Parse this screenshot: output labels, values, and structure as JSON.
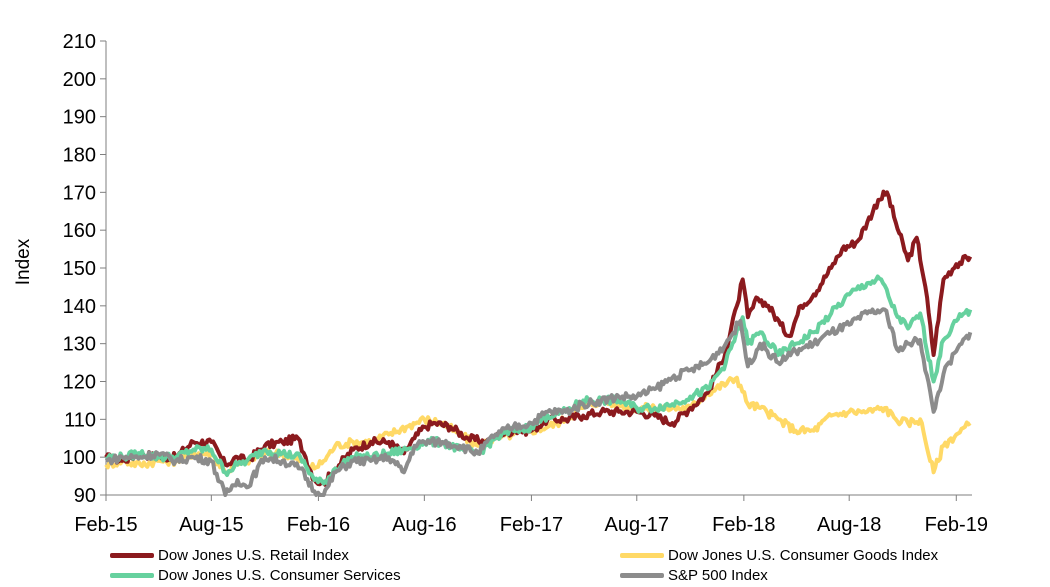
{
  "chart_data": {
    "type": "line",
    "title": "",
    "xlabel": "",
    "ylabel": "Index",
    "ylim": [
      90,
      210
    ],
    "yticks": [
      90,
      100,
      110,
      120,
      130,
      140,
      150,
      160,
      170,
      180,
      190,
      200,
      210
    ],
    "xlim": [
      "2015-02-01",
      "2019-02-28"
    ],
    "xticks": [
      {
        "label": "Feb-15",
        "date": "2015-02-01"
      },
      {
        "label": "Aug-15",
        "date": "2015-08-01"
      },
      {
        "label": "Feb-16",
        "date": "2016-02-01"
      },
      {
        "label": "Aug-16",
        "date": "2016-08-01"
      },
      {
        "label": "Feb-17",
        "date": "2017-02-01"
      },
      {
        "label": "Aug-17",
        "date": "2017-08-01"
      },
      {
        "label": "Feb-18",
        "date": "2018-02-01"
      },
      {
        "label": "Aug-18",
        "date": "2018-08-01"
      },
      {
        "label": "Feb-19",
        "date": "2019-02-01"
      }
    ],
    "grid": false,
    "legend_position": "bottom",
    "series": [
      {
        "name": "Dow Jones U.S. Retail Index",
        "color": "#8B1A1E",
        "points": [
          [
            "2015-02-01",
            100
          ],
          [
            "2015-03-01",
            99
          ],
          [
            "2015-04-01",
            101
          ],
          [
            "2015-05-01",
            100
          ],
          [
            "2015-06-01",
            100
          ],
          [
            "2015-07-01",
            104
          ],
          [
            "2015-08-01",
            104
          ],
          [
            "2015-08-25",
            98
          ],
          [
            "2015-09-15",
            100
          ],
          [
            "2015-10-01",
            99
          ],
          [
            "2015-11-01",
            103
          ],
          [
            "2015-12-01",
            104
          ],
          [
            "2015-12-28",
            105
          ],
          [
            "2016-01-10",
            100
          ],
          [
            "2016-01-25",
            94
          ],
          [
            "2016-02-10",
            93
          ],
          [
            "2016-03-01",
            97
          ],
          [
            "2016-04-01",
            102
          ],
          [
            "2016-05-01",
            104
          ],
          [
            "2016-06-01",
            104
          ],
          [
            "2016-06-27",
            101
          ],
          [
            "2016-07-15",
            105
          ],
          [
            "2016-08-01",
            108
          ],
          [
            "2016-08-20",
            109
          ],
          [
            "2016-09-15",
            108
          ],
          [
            "2016-10-15",
            105
          ],
          [
            "2016-11-15",
            104
          ],
          [
            "2016-12-10",
            106
          ],
          [
            "2017-01-01",
            107
          ],
          [
            "2017-02-01",
            107
          ],
          [
            "2017-03-01",
            110
          ],
          [
            "2017-04-01",
            110
          ],
          [
            "2017-05-01",
            111
          ],
          [
            "2017-06-01",
            112
          ],
          [
            "2017-07-01",
            112
          ],
          [
            "2017-08-01",
            112
          ],
          [
            "2017-09-01",
            111
          ],
          [
            "2017-10-01",
            109
          ],
          [
            "2017-11-01",
            113
          ],
          [
            "2017-12-01",
            117
          ],
          [
            "2018-01-01",
            128
          ],
          [
            "2018-01-20",
            140
          ],
          [
            "2018-01-30",
            147
          ],
          [
            "2018-02-08",
            137
          ],
          [
            "2018-02-25",
            142
          ],
          [
            "2018-03-15",
            140
          ],
          [
            "2018-04-05",
            135
          ],
          [
            "2018-04-20",
            132
          ],
          [
            "2018-05-10",
            140
          ],
          [
            "2018-06-01",
            143
          ],
          [
            "2018-07-01",
            150
          ],
          [
            "2018-07-20",
            155
          ],
          [
            "2018-08-15",
            157
          ],
          [
            "2018-09-01",
            162
          ],
          [
            "2018-09-20",
            168
          ],
          [
            "2018-10-05",
            170
          ],
          [
            "2018-10-20",
            162
          ],
          [
            "2018-11-10",
            152
          ],
          [
            "2018-11-25",
            158
          ],
          [
            "2018-12-10",
            145
          ],
          [
            "2018-12-24",
            127
          ],
          [
            "2019-01-10",
            147
          ],
          [
            "2019-02-01",
            151
          ],
          [
            "2019-02-25",
            153
          ]
        ]
      },
      {
        "name": "Dow Jones U.S. Consumer Goods Index",
        "color": "#FFD966",
        "points": [
          [
            "2015-02-01",
            98
          ],
          [
            "2015-03-01",
            99
          ],
          [
            "2015-04-01",
            98
          ],
          [
            "2015-05-01",
            99
          ],
          [
            "2015-06-01",
            99
          ],
          [
            "2015-07-01",
            101
          ],
          [
            "2015-08-01",
            101
          ],
          [
            "2015-08-25",
            96
          ],
          [
            "2015-09-15",
            98
          ],
          [
            "2015-10-01",
            99
          ],
          [
            "2015-11-01",
            101
          ],
          [
            "2015-12-01",
            101
          ],
          [
            "2016-01-01",
            99
          ],
          [
            "2016-01-25",
            97
          ],
          [
            "2016-02-10",
            99
          ],
          [
            "2016-03-01",
            103
          ],
          [
            "2016-04-01",
            104
          ],
          [
            "2016-05-01",
            104
          ],
          [
            "2016-06-01",
            106
          ],
          [
            "2016-07-01",
            108
          ],
          [
            "2016-08-01",
            110
          ],
          [
            "2016-09-01",
            109
          ],
          [
            "2016-10-01",
            106
          ],
          [
            "2016-11-01",
            103
          ],
          [
            "2016-12-01",
            105
          ],
          [
            "2017-01-01",
            106
          ],
          [
            "2017-02-01",
            107
          ],
          [
            "2017-03-01",
            108
          ],
          [
            "2017-04-01",
            110
          ],
          [
            "2017-05-01",
            113
          ],
          [
            "2017-06-01",
            115
          ],
          [
            "2017-07-01",
            114
          ],
          [
            "2017-08-01",
            113
          ],
          [
            "2017-09-01",
            113
          ],
          [
            "2017-10-01",
            113
          ],
          [
            "2017-11-01",
            113
          ],
          [
            "2017-12-01",
            117
          ],
          [
            "2018-01-20",
            121
          ],
          [
            "2018-02-08",
            114
          ],
          [
            "2018-03-01",
            113
          ],
          [
            "2018-04-01",
            110
          ],
          [
            "2018-05-01",
            107
          ],
          [
            "2018-06-01",
            107
          ],
          [
            "2018-07-01",
            111
          ],
          [
            "2018-08-01",
            112
          ],
          [
            "2018-09-01",
            112
          ],
          [
            "2018-10-01",
            113
          ],
          [
            "2018-10-20",
            110
          ],
          [
            "2018-11-10",
            109
          ],
          [
            "2018-12-01",
            110
          ],
          [
            "2018-12-24",
            96
          ],
          [
            "2019-01-10",
            103
          ],
          [
            "2019-02-01",
            106
          ],
          [
            "2019-02-25",
            109
          ]
        ]
      },
      {
        "name": "Dow Jones U.S. Consumer Services",
        "color": "#66D19E",
        "points": [
          [
            "2015-02-01",
            100
          ],
          [
            "2015-03-01",
            100
          ],
          [
            "2015-04-01",
            101
          ],
          [
            "2015-05-01",
            100
          ],
          [
            "2015-06-01",
            100
          ],
          [
            "2015-07-01",
            102
          ],
          [
            "2015-08-01",
            102
          ],
          [
            "2015-08-25",
            96
          ],
          [
            "2015-09-15",
            98
          ],
          [
            "2015-10-01",
            99
          ],
          [
            "2015-11-01",
            102
          ],
          [
            "2015-12-01",
            101
          ],
          [
            "2016-01-01",
            100
          ],
          [
            "2016-01-25",
            94
          ],
          [
            "2016-02-10",
            93
          ],
          [
            "2016-03-01",
            97
          ],
          [
            "2016-04-01",
            100
          ],
          [
            "2016-05-01",
            100
          ],
          [
            "2016-06-01",
            101
          ],
          [
            "2016-07-01",
            102
          ],
          [
            "2016-08-01",
            104
          ],
          [
            "2016-09-01",
            104
          ],
          [
            "2016-10-01",
            102
          ],
          [
            "2016-11-01",
            101
          ],
          [
            "2016-12-01",
            105
          ],
          [
            "2017-01-01",
            107
          ],
          [
            "2017-02-01",
            108
          ],
          [
            "2017-03-01",
            111
          ],
          [
            "2017-04-01",
            112
          ],
          [
            "2017-05-01",
            115
          ],
          [
            "2017-06-01",
            115
          ],
          [
            "2017-07-01",
            115
          ],
          [
            "2017-08-01",
            113
          ],
          [
            "2017-09-01",
            113
          ],
          [
            "2017-10-01",
            114
          ],
          [
            "2017-11-01",
            116
          ],
          [
            "2017-12-01",
            118
          ],
          [
            "2018-01-01",
            125
          ],
          [
            "2018-01-30",
            137
          ],
          [
            "2018-02-08",
            130
          ],
          [
            "2018-03-01",
            133
          ],
          [
            "2018-04-01",
            127
          ],
          [
            "2018-05-01",
            130
          ],
          [
            "2018-06-01",
            133
          ],
          [
            "2018-07-01",
            138
          ],
          [
            "2018-08-01",
            143
          ],
          [
            "2018-09-01",
            146
          ],
          [
            "2018-09-25",
            147
          ],
          [
            "2018-10-20",
            138
          ],
          [
            "2018-11-10",
            134
          ],
          [
            "2018-12-01",
            138
          ],
          [
            "2018-12-24",
            120
          ],
          [
            "2019-01-10",
            131
          ],
          [
            "2019-02-01",
            136
          ],
          [
            "2019-02-25",
            139
          ]
        ]
      },
      {
        "name": "S&P 500 Index",
        "color": "#8C8C8C",
        "points": [
          [
            "2015-02-01",
            99
          ],
          [
            "2015-03-01",
            100
          ],
          [
            "2015-04-01",
            100
          ],
          [
            "2015-05-01",
            101
          ],
          [
            "2015-06-01",
            99
          ],
          [
            "2015-07-01",
            100
          ],
          [
            "2015-08-01",
            99
          ],
          [
            "2015-08-25",
            90
          ],
          [
            "2015-09-15",
            94
          ],
          [
            "2015-10-01",
            92
          ],
          [
            "2015-11-01",
            100
          ],
          [
            "2015-12-01",
            99
          ],
          [
            "2016-01-01",
            97
          ],
          [
            "2016-01-25",
            91
          ],
          [
            "2016-02-10",
            90
          ],
          [
            "2016-03-01",
            96
          ],
          [
            "2016-04-01",
            99
          ],
          [
            "2016-05-01",
            99
          ],
          [
            "2016-06-01",
            100
          ],
          [
            "2016-06-27",
            96
          ],
          [
            "2016-07-15",
            103
          ],
          [
            "2016-08-01",
            104
          ],
          [
            "2016-09-01",
            104
          ],
          [
            "2016-10-01",
            103
          ],
          [
            "2016-11-01",
            101
          ],
          [
            "2016-12-01",
            106
          ],
          [
            "2017-01-01",
            108
          ],
          [
            "2017-02-01",
            109
          ],
          [
            "2017-03-01",
            112
          ],
          [
            "2017-04-01",
            112
          ],
          [
            "2017-05-01",
            114
          ],
          [
            "2017-06-01",
            115
          ],
          [
            "2017-07-01",
            116
          ],
          [
            "2017-08-01",
            116
          ],
          [
            "2017-09-01",
            118
          ],
          [
            "2017-10-01",
            121
          ],
          [
            "2017-11-01",
            123
          ],
          [
            "2017-12-01",
            125
          ],
          [
            "2018-01-01",
            130
          ],
          [
            "2018-01-26",
            136
          ],
          [
            "2018-02-08",
            124
          ],
          [
            "2018-03-01",
            130
          ],
          [
            "2018-04-01",
            125
          ],
          [
            "2018-05-01",
            128
          ],
          [
            "2018-06-01",
            130
          ],
          [
            "2018-07-01",
            133
          ],
          [
            "2018-08-01",
            135
          ],
          [
            "2018-09-01",
            138
          ],
          [
            "2018-10-01",
            139
          ],
          [
            "2018-10-25",
            128
          ],
          [
            "2018-11-10",
            130
          ],
          [
            "2018-12-01",
            131
          ],
          [
            "2018-12-24",
            112
          ],
          [
            "2019-01-10",
            122
          ],
          [
            "2019-02-01",
            128
          ],
          [
            "2019-02-25",
            133
          ]
        ]
      }
    ]
  },
  "legend": [
    {
      "label": "Dow Jones U.S. Retail Index",
      "color": "#8B1A1E"
    },
    {
      "label": "Dow Jones U.S. Consumer Goods Index",
      "color": "#FFD966"
    },
    {
      "label": "Dow Jones U.S. Consumer Services",
      "color": "#66D19E"
    },
    {
      "label": "S&P 500 Index",
      "color": "#8C8C8C"
    }
  ]
}
